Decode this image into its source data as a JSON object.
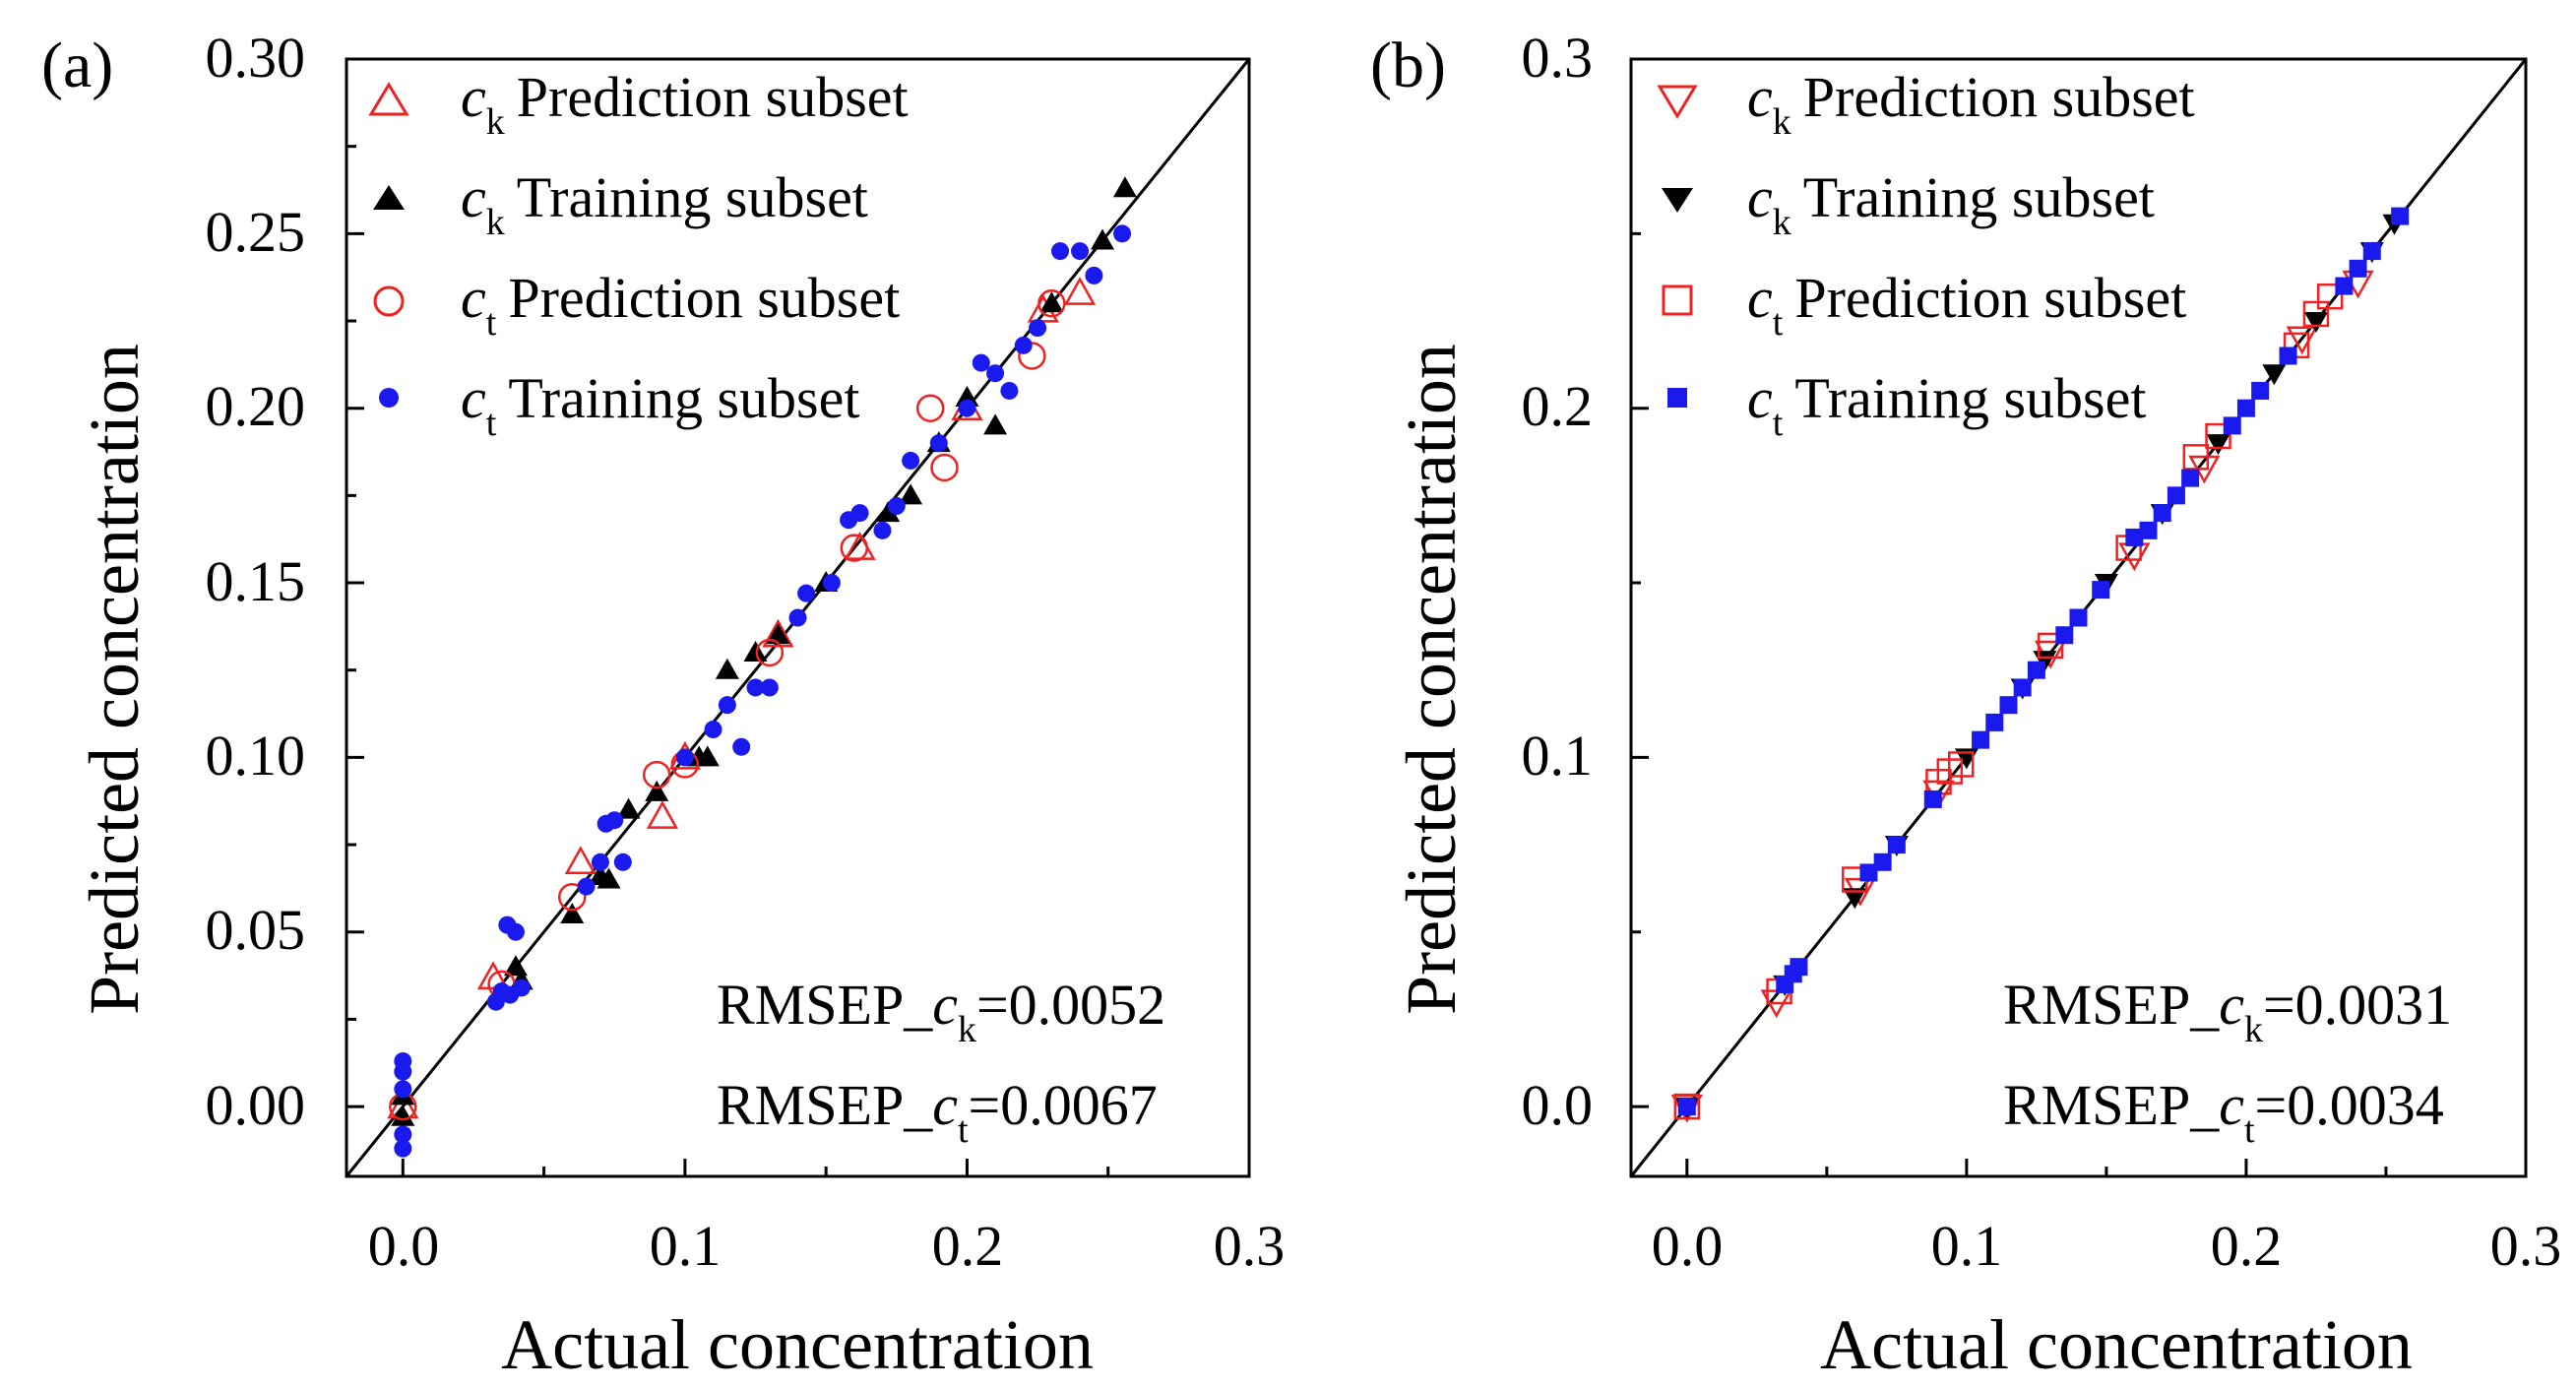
{
  "colors": {
    "red": "#ee2222",
    "black": "#000000",
    "blue": "#1a1aee"
  },
  "chart_data": [
    {
      "panel_label": "(a)",
      "type": "scatter",
      "xlabel": "Actual concentration",
      "ylabel": "Predicted concentration",
      "xlim": [
        -0.02,
        0.3
      ],
      "ylim": [
        -0.02,
        0.3
      ],
      "xticks": [
        0.0,
        0.1,
        0.2,
        0.3
      ],
      "xtick_labels": [
        "0.0",
        "0.1",
        "0.2",
        "0.3"
      ],
      "yticks": [
        0.0,
        0.05,
        0.1,
        0.15,
        0.2,
        0.25,
        0.3
      ],
      "ytick_labels": [
        "0.00",
        "0.05",
        "0.10",
        "0.15",
        "0.20",
        "0.25",
        "0.30"
      ],
      "reference_line": "y = x",
      "legend_position": "top-left",
      "series": [
        {
          "name_var": "c",
          "name_sub": "k",
          "name_text": "Prediction subset",
          "marker": "triangle-up-open",
          "color": "#ee2222",
          "points": [
            [
              0.0,
              0.0
            ],
            [
              0.032,
              0.037
            ],
            [
              0.063,
              0.07
            ],
            [
              0.092,
              0.083
            ],
            [
              0.1,
              0.1
            ],
            [
              0.133,
              0.135
            ],
            [
              0.162,
              0.16
            ],
            [
              0.2,
              0.2
            ],
            [
              0.227,
              0.228
            ],
            [
              0.24,
              0.233
            ]
          ]
        },
        {
          "name_var": "c",
          "name_sub": "k",
          "name_text": "Training subset",
          "marker": "triangle-up-filled",
          "color": "#000000",
          "points": [
            [
              0.0,
              -0.003
            ],
            [
              0.0,
              0.003
            ],
            [
              0.04,
              0.04
            ],
            [
              0.042,
              0.036
            ],
            [
              0.06,
              0.055
            ],
            [
              0.07,
              0.066
            ],
            [
              0.073,
              0.065
            ],
            [
              0.08,
              0.085
            ],
            [
              0.09,
              0.09
            ],
            [
              0.105,
              0.1
            ],
            [
              0.108,
              0.1
            ],
            [
              0.115,
              0.125
            ],
            [
              0.125,
              0.13
            ],
            [
              0.133,
              0.135
            ],
            [
              0.15,
              0.15
            ],
            [
              0.172,
              0.17
            ],
            [
              0.18,
              0.175
            ],
            [
              0.19,
              0.19
            ],
            [
              0.2,
              0.203
            ],
            [
              0.21,
              0.195
            ],
            [
              0.23,
              0.23
            ],
            [
              0.248,
              0.248
            ],
            [
              0.256,
              0.263
            ]
          ]
        },
        {
          "name_var": "c",
          "name_sub": "t",
          "name_text": "Prediction subset",
          "marker": "circle-open",
          "color": "#ee2222",
          "points": [
            [
              0.0,
              0.0
            ],
            [
              0.035,
              0.035
            ],
            [
              0.06,
              0.06
            ],
            [
              0.09,
              0.095
            ],
            [
              0.1,
              0.098
            ],
            [
              0.13,
              0.13
            ],
            [
              0.16,
              0.16
            ],
            [
              0.187,
              0.2
            ],
            [
              0.192,
              0.183
            ],
            [
              0.223,
              0.215
            ],
            [
              0.23,
              0.23
            ]
          ]
        },
        {
          "name_var": "c",
          "name_sub": "t",
          "name_text": "Training subset",
          "marker": "circle-filled",
          "color": "#1a1aee",
          "points": [
            [
              0.0,
              0.013
            ],
            [
              0.0,
              0.01
            ],
            [
              0.0,
              0.005
            ],
            [
              0.0,
              -0.008
            ],
            [
              0.0,
              -0.012
            ],
            [
              0.033,
              0.03
            ],
            [
              0.035,
              0.033
            ],
            [
              0.037,
              0.052
            ],
            [
              0.04,
              0.05
            ],
            [
              0.042,
              0.034
            ],
            [
              0.038,
              0.032
            ],
            [
              0.065,
              0.063
            ],
            [
              0.07,
              0.07
            ],
            [
              0.072,
              0.081
            ],
            [
              0.075,
              0.082
            ],
            [
              0.078,
              0.07
            ],
            [
              0.1,
              0.1
            ],
            [
              0.11,
              0.108
            ],
            [
              0.115,
              0.115
            ],
            [
              0.12,
              0.103
            ],
            [
              0.125,
              0.12
            ],
            [
              0.13,
              0.12
            ],
            [
              0.14,
              0.14
            ],
            [
              0.143,
              0.147
            ],
            [
              0.152,
              0.15
            ],
            [
              0.158,
              0.168
            ],
            [
              0.162,
              0.17
            ],
            [
              0.17,
              0.165
            ],
            [
              0.175,
              0.172
            ],
            [
              0.18,
              0.185
            ],
            [
              0.19,
              0.19
            ],
            [
              0.2,
              0.2
            ],
            [
              0.205,
              0.213
            ],
            [
              0.21,
              0.21
            ],
            [
              0.215,
              0.205
            ],
            [
              0.22,
              0.218
            ],
            [
              0.225,
              0.223
            ],
            [
              0.233,
              0.245
            ],
            [
              0.24,
              0.245
            ],
            [
              0.245,
              0.238
            ],
            [
              0.255,
              0.25
            ]
          ]
        }
      ],
      "annotations": [
        {
          "prefix": "RMSEP_",
          "var": "c",
          "sub": "k",
          "value": "=0.0052"
        },
        {
          "prefix": "RMSEP_",
          "var": "c",
          "sub": "t",
          "value": "=0.0067"
        }
      ]
    },
    {
      "panel_label": "(b)",
      "type": "scatter",
      "xlabel": "Actual concentration",
      "ylabel": "Predicted concentration",
      "xlim": [
        -0.02,
        0.3
      ],
      "ylim": [
        -0.02,
        0.3
      ],
      "xticks": [
        0.0,
        0.1,
        0.2,
        0.3
      ],
      "xtick_labels": [
        "0.0",
        "0.1",
        "0.2",
        "0.3"
      ],
      "yticks": [
        0.0,
        0.1,
        0.2,
        0.3
      ],
      "ytick_labels": [
        "0.0",
        "0.1",
        "0.2",
        "0.3"
      ],
      "reference_line": "y = x",
      "legend_position": "top-left",
      "series": [
        {
          "name_var": "c",
          "name_sub": "k",
          "name_text": "Prediction subset",
          "marker": "triangle-down-open",
          "color": "#ee2222",
          "points": [
            [
              0.0,
              0.0
            ],
            [
              0.032,
              0.03
            ],
            [
              0.062,
              0.062
            ],
            [
              0.09,
              0.09
            ],
            [
              0.13,
              0.13
            ],
            [
              0.16,
              0.158
            ],
            [
              0.185,
              0.183
            ],
            [
              0.22,
              0.22
            ],
            [
              0.24,
              0.236
            ]
          ]
        },
        {
          "name_var": "c",
          "name_sub": "k",
          "name_text": "Training subset",
          "marker": "triangle-down-filled",
          "color": "#000000",
          "points": [
            [
              0.0,
              0.0
            ],
            [
              0.035,
              0.035
            ],
            [
              0.06,
              0.06
            ],
            [
              0.075,
              0.075
            ],
            [
              0.1,
              0.1
            ],
            [
              0.12,
              0.12
            ],
            [
              0.128,
              0.128
            ],
            [
              0.15,
              0.15
            ],
            [
              0.17,
              0.17
            ],
            [
              0.19,
              0.19
            ],
            [
              0.21,
              0.21
            ],
            [
              0.225,
              0.225
            ],
            [
              0.245,
              0.245
            ],
            [
              0.253,
              0.253
            ]
          ]
        },
        {
          "name_var": "c",
          "name_sub": "t",
          "name_text": "Prediction subset",
          "marker": "square-open",
          "color": "#ee2222",
          "points": [
            [
              0.0,
              0.0
            ],
            [
              0.033,
              0.033
            ],
            [
              0.06,
              0.065
            ],
            [
              0.09,
              0.093
            ],
            [
              0.094,
              0.096
            ],
            [
              0.098,
              0.098
            ],
            [
              0.13,
              0.132
            ],
            [
              0.158,
              0.16
            ],
            [
              0.182,
              0.186
            ],
            [
              0.19,
              0.192
            ],
            [
              0.218,
              0.218
            ],
            [
              0.225,
              0.227
            ],
            [
              0.23,
              0.232
            ]
          ]
        },
        {
          "name_var": "c",
          "name_sub": "t",
          "name_text": "Training subset",
          "marker": "square-filled",
          "color": "#1a1aee",
          "points": [
            [
              0.0,
              0.0
            ],
            [
              0.035,
              0.035
            ],
            [
              0.038,
              0.038
            ],
            [
              0.04,
              0.04
            ],
            [
              0.065,
              0.067
            ],
            [
              0.07,
              0.07
            ],
            [
              0.075,
              0.075
            ],
            [
              0.088,
              0.088
            ],
            [
              0.105,
              0.105
            ],
            [
              0.11,
              0.11
            ],
            [
              0.115,
              0.115
            ],
            [
              0.12,
              0.12
            ],
            [
              0.125,
              0.125
            ],
            [
              0.135,
              0.135
            ],
            [
              0.14,
              0.14
            ],
            [
              0.148,
              0.148
            ],
            [
              0.16,
              0.163
            ],
            [
              0.165,
              0.165
            ],
            [
              0.17,
              0.17
            ],
            [
              0.175,
              0.175
            ],
            [
              0.18,
              0.18
            ],
            [
              0.195,
              0.195
            ],
            [
              0.2,
              0.2
            ],
            [
              0.205,
              0.205
            ],
            [
              0.215,
              0.215
            ],
            [
              0.235,
              0.235
            ],
            [
              0.24,
              0.24
            ],
            [
              0.245,
              0.245
            ],
            [
              0.255,
              0.255
            ]
          ]
        }
      ],
      "annotations": [
        {
          "prefix": "RMSEP_",
          "var": "c",
          "sub": "k",
          "value": "=0.0031"
        },
        {
          "prefix": "RMSEP_",
          "var": "c",
          "sub": "t",
          "value": "=0.0034"
        }
      ]
    }
  ]
}
